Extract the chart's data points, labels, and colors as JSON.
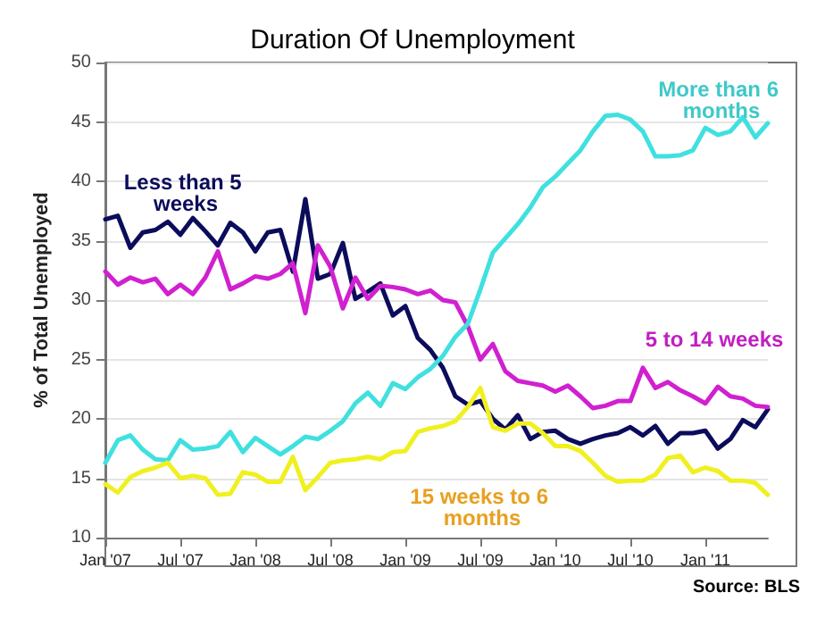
{
  "chart_data": {
    "type": "line",
    "title": "Duration Of Unemployment",
    "ylabel": "% of Total Unemployed",
    "annotations": [
      "Source: BLS"
    ],
    "categories": [
      "Jan '07",
      null,
      null,
      null,
      null,
      null,
      "Jul '07",
      null,
      null,
      null,
      null,
      null,
      "Jan '08",
      null,
      null,
      null,
      null,
      null,
      "Jul '08",
      null,
      null,
      null,
      null,
      null,
      "Jan '09",
      null,
      null,
      null,
      null,
      null,
      "Jul '09",
      null,
      null,
      null,
      null,
      null,
      "Jan '10",
      null,
      null,
      null,
      null,
      null,
      "Jul '10",
      null,
      null,
      null,
      null,
      null,
      "Jan '11",
      null,
      null,
      null,
      null,
      null
    ],
    "series": [
      {
        "name": "Less than 5 weeks",
        "color": "#0c0c5c",
        "values": [
          36.8,
          37.1,
          34.4,
          35.7,
          35.9,
          36.6,
          35.5,
          36.9,
          35.8,
          34.6,
          36.5,
          35.7,
          34.1,
          35.7,
          35.9,
          32.4,
          38.5,
          31.8,
          32.2,
          34.8,
          30.1,
          30.7,
          31.4,
          28.7,
          29.5,
          26.8,
          25.8,
          24.3,
          21.9,
          21.2,
          21.5,
          20.0,
          19.1,
          20.3,
          18.3,
          18.9,
          19.0,
          18.3,
          17.9,
          18.3,
          18.6,
          18.8,
          19.3,
          18.6,
          19.4,
          17.9,
          18.8,
          18.8,
          19.0,
          17.5,
          18.3,
          19.9,
          19.3,
          20.8
        ]
      },
      {
        "name": "5 to 14 weeks",
        "color": "#d020d0",
        "values": [
          32.4,
          31.3,
          31.9,
          31.5,
          31.8,
          30.5,
          31.3,
          30.5,
          31.9,
          34.1,
          30.9,
          31.4,
          32.0,
          31.8,
          32.2,
          33.1,
          28.9,
          34.6,
          32.8,
          29.3,
          31.9,
          30.1,
          31.2,
          31.1,
          30.9,
          30.5,
          30.8,
          30.0,
          29.8,
          27.8,
          25.0,
          26.3,
          24.0,
          23.2,
          23.0,
          22.8,
          22.3,
          22.8,
          21.9,
          20.9,
          21.1,
          21.5,
          21.5,
          24.3,
          22.6,
          23.1,
          22.4,
          21.9,
          21.3,
          22.7,
          21.9,
          21.7,
          21.1,
          21.0
        ]
      },
      {
        "name": "More than 6 months",
        "color": "#40e0e0",
        "values": [
          16.3,
          18.2,
          18.6,
          17.4,
          16.6,
          16.5,
          18.2,
          17.4,
          17.5,
          17.7,
          18.9,
          17.2,
          18.4,
          17.7,
          17.0,
          17.7,
          18.5,
          18.3,
          19.0,
          19.8,
          21.3,
          22.2,
          21.1,
          23.0,
          22.5,
          23.5,
          24.2,
          25.3,
          26.9,
          28.0,
          30.9,
          34.0,
          35.2,
          36.4,
          37.8,
          39.5,
          40.4,
          41.5,
          42.6,
          44.2,
          45.5,
          45.6,
          45.2,
          44.2,
          42.1,
          42.1,
          42.2,
          42.6,
          44.5,
          43.9,
          44.2,
          45.4,
          43.7,
          44.9
        ]
      },
      {
        "name": "15 weeks to 6 months",
        "color": "#f0f020",
        "values": [
          14.5,
          13.8,
          15.1,
          15.6,
          15.9,
          16.3,
          15.0,
          15.2,
          15.0,
          13.6,
          13.7,
          15.5,
          15.3,
          14.7,
          14.7,
          16.8,
          14.0,
          15.1,
          16.3,
          16.5,
          16.6,
          16.8,
          16.6,
          17.2,
          17.3,
          18.9,
          19.2,
          19.4,
          19.8,
          21.0,
          22.6,
          19.3,
          19.0,
          19.6,
          19.6,
          18.8,
          17.7,
          17.7,
          17.3,
          16.3,
          15.2,
          14.7,
          14.8,
          14.8,
          15.3,
          16.7,
          16.9,
          15.5,
          15.9,
          15.6,
          14.8,
          14.8,
          14.6,
          13.6
        ]
      }
    ],
    "ylim": [
      10,
      50
    ],
    "yticks": [
      10,
      15,
      20,
      25,
      30,
      35,
      40,
      45,
      50
    ],
    "grid": "y",
    "legend": false,
    "marker": "none",
    "line_style": "solid"
  }
}
